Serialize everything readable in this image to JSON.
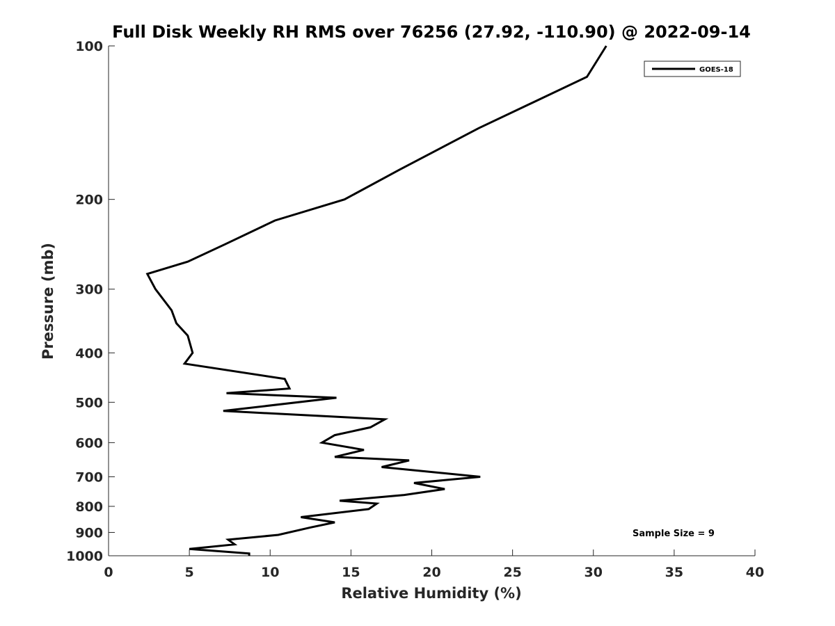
{
  "chart_data": {
    "type": "line",
    "title": "Full Disk Weekly RH RMS over 76256 (27.92, -110.90) @ 2022-09-14",
    "xlabel": "Relative Humidity (%)",
    "ylabel": "Pressure (mb)",
    "xlim": [
      0,
      40
    ],
    "ylim": [
      100,
      1000
    ],
    "y_scale": "log",
    "y_reversed": true,
    "x_ticks": [
      0,
      5,
      10,
      15,
      20,
      25,
      30,
      35,
      40
    ],
    "y_ticks": [
      100,
      200,
      300,
      400,
      500,
      600,
      700,
      800,
      900,
      1000
    ],
    "grid": false,
    "legend_position": "top-right",
    "annotation": "Sample Size = 9",
    "line_color": "#000000",
    "series": [
      {
        "name": "GOES-18",
        "x": [
          30.8,
          29.6,
          22.9,
          18.0,
          14.6,
          10.3,
          7.2,
          4.9,
          2.4,
          2.9,
          3.9,
          4.2,
          4.9,
          5.2,
          4.7,
          10.9,
          11.2,
          7.3,
          14.1,
          7.1,
          17.1,
          16.2,
          14.0,
          13.2,
          15.8,
          14.0,
          18.6,
          16.9,
          23.0,
          18.9,
          20.8,
          18.3,
          14.3,
          16.6,
          16.1,
          11.9,
          14.0,
          12.5,
          10.5,
          7.4,
          7.8,
          5.0,
          8.7,
          8.7
        ],
        "y": [
          100,
          115,
          145,
          175,
          200,
          220,
          245,
          265,
          280,
          300,
          330,
          350,
          370,
          400,
          420,
          450,
          470,
          480,
          490,
          520,
          540,
          560,
          580,
          600,
          620,
          640,
          650,
          670,
          700,
          720,
          740,
          760,
          780,
          790,
          810,
          840,
          860,
          880,
          910,
          930,
          950,
          970,
          990,
          1000
        ]
      }
    ]
  }
}
